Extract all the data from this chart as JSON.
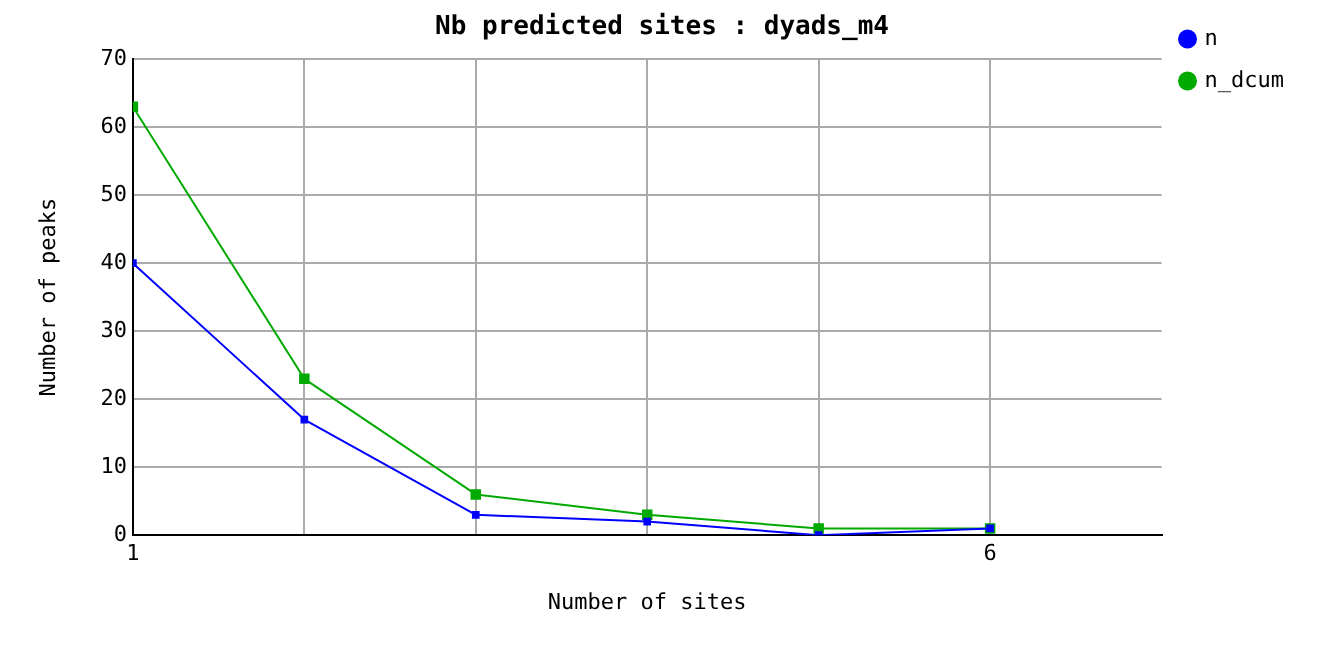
{
  "chart_data": {
    "type": "line",
    "title": "Nb predicted sites : dyads_m4",
    "xlabel": "Number of sites",
    "ylabel": "Number of peaks",
    "x": [
      1,
      2,
      3,
      4,
      5,
      6
    ],
    "series": [
      {
        "name": "n",
        "color": "#0000ff",
        "values": [
          40,
          17,
          3,
          2,
          0,
          1
        ]
      },
      {
        "name": "n_dcum",
        "color": "#00aa00",
        "values": [
          63,
          23,
          6,
          3,
          1,
          1
        ]
      }
    ],
    "xlim": [
      1,
      7
    ],
    "xticks": [
      1,
      {
        "value": 2,
        "label": null
      },
      {
        "value": 3,
        "label": null
      },
      {
        "value": 4,
        "label": null
      },
      {
        "value": 5,
        "label": null
      },
      6
    ],
    "ylim": [
      0,
      70
    ],
    "yticks": [
      0,
      10,
      20,
      30,
      40,
      50,
      60,
      70
    ],
    "grid": true,
    "legend": "top right",
    "marker": "square",
    "line_style": "solid"
  }
}
